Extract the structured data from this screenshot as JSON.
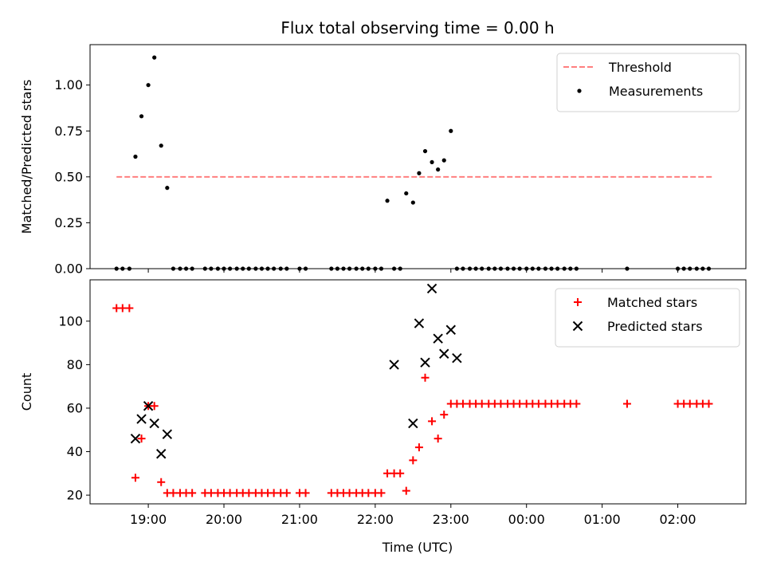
{
  "chart_data": {
    "title": "Flux total observing time = 0.00 h",
    "type": "scatter",
    "xlabel": "Time (UTC)",
    "x_unit": "decimal hours UTC; values over 24 continue past midnight",
    "x_ticks": [
      {
        "value": 19,
        "label": "19:00"
      },
      {
        "value": 20,
        "label": "20:00"
      },
      {
        "value": 21,
        "label": "21:00"
      },
      {
        "value": 22,
        "label": "22:00"
      },
      {
        "value": 23,
        "label": "23:00"
      },
      {
        "value": 24,
        "label": "00:00"
      },
      {
        "value": 25,
        "label": "01:00"
      },
      {
        "value": 26,
        "label": "02:00"
      }
    ],
    "xlim": [
      18.23,
      26.9
    ],
    "panels": [
      {
        "ylabel": "Matched/Predicted stars",
        "ylim": [
          0,
          1.22
        ],
        "y_ticks": [
          {
            "value": 0.0,
            "label": "0.00"
          },
          {
            "value": 0.25,
            "label": "0.25"
          },
          {
            "value": 0.5,
            "label": "0.50"
          },
          {
            "value": 0.75,
            "label": "0.75"
          },
          {
            "value": 1.0,
            "label": "1.00"
          }
        ],
        "legend": {
          "position": "top-right",
          "entries": [
            "Threshold",
            "Measurements"
          ]
        },
        "series": [
          {
            "name": "Threshold",
            "kind": "dashed-line",
            "color": "#ff7f7f",
            "x": [
              18.58,
              26.45
            ],
            "y": [
              0.5,
              0.5
            ]
          },
          {
            "name": "Measurements",
            "kind": "dot",
            "color": "#000000",
            "x": [
              18.58,
              18.66,
              18.75,
              18.83,
              18.91,
              19.0,
              19.08,
              19.17,
              19.25,
              19.33,
              19.42,
              19.5,
              19.58,
              19.75,
              19.83,
              19.92,
              20.0,
              20.08,
              20.17,
              20.25,
              20.33,
              20.42,
              20.5,
              20.58,
              20.66,
              20.75,
              20.83,
              21.0,
              21.08,
              21.42,
              21.5,
              21.58,
              21.66,
              21.75,
              21.83,
              21.91,
              22.0,
              22.08,
              22.16,
              22.25,
              22.33,
              22.41,
              22.5,
              22.58,
              22.66,
              22.75,
              22.83,
              22.91,
              23.0,
              23.08,
              23.16,
              23.25,
              23.33,
              23.41,
              23.5,
              23.58,
              23.66,
              23.75,
              23.83,
              23.91,
              24.0,
              24.08,
              24.16,
              24.25,
              24.33,
              24.41,
              24.5,
              24.58,
              24.66,
              25.33,
              26.0,
              26.08,
              26.16,
              26.25,
              26.33,
              26.41
            ],
            "y": [
              0,
              0,
              0,
              0.61,
              0.83,
              1.0,
              1.15,
              0.67,
              0.44,
              0,
              0,
              0,
              0,
              0,
              0,
              0,
              0,
              0,
              0,
              0,
              0,
              0,
              0,
              0,
              0,
              0,
              0,
              0,
              0,
              0,
              0,
              0,
              0,
              0,
              0,
              0,
              0,
              0,
              0.37,
              0,
              0,
              0.41,
              0.36,
              0.52,
              0.64,
              0.58,
              0.54,
              0.59,
              0.75,
              0,
              0,
              0,
              0,
              0,
              0,
              0,
              0,
              0,
              0,
              0,
              0,
              0,
              0,
              0,
              0,
              0,
              0,
              0,
              0,
              0,
              0,
              0,
              0,
              0,
              0,
              0
            ]
          }
        ]
      },
      {
        "ylabel": "Count",
        "ylim": [
          16,
          119
        ],
        "y_ticks": [
          {
            "value": 20,
            "label": "20"
          },
          {
            "value": 40,
            "label": "40"
          },
          {
            "value": 60,
            "label": "60"
          },
          {
            "value": 80,
            "label": "80"
          },
          {
            "value": 100,
            "label": "100"
          }
        ],
        "legend": {
          "position": "top-right",
          "entries": [
            "Matched stars",
            "Predicted stars"
          ]
        },
        "series": [
          {
            "name": "Matched stars",
            "kind": "plus",
            "color": "#ff0000",
            "x": [
              18.58,
              18.66,
              18.75,
              18.83,
              18.91,
              19.0,
              19.08,
              19.17,
              19.25,
              19.33,
              19.42,
              19.5,
              19.58,
              19.75,
              19.83,
              19.92,
              20.0,
              20.08,
              20.17,
              20.25,
              20.33,
              20.42,
              20.5,
              20.58,
              20.66,
              20.75,
              20.83,
              21.0,
              21.08,
              21.42,
              21.5,
              21.58,
              21.66,
              21.75,
              21.83,
              21.91,
              22.0,
              22.08,
              22.16,
              22.25,
              22.33,
              22.41,
              22.5,
              22.58,
              22.66,
              22.75,
              22.83,
              22.91,
              23.0,
              23.08,
              23.16,
              23.25,
              23.33,
              23.41,
              23.5,
              23.58,
              23.66,
              23.75,
              23.83,
              23.91,
              24.0,
              24.08,
              24.16,
              24.25,
              24.33,
              24.41,
              24.5,
              24.58,
              24.66,
              25.33,
              26.0,
              26.08,
              26.16,
              26.25,
              26.33,
              26.41
            ],
            "y": [
              106,
              106,
              106,
              28,
              46,
              61,
              61,
              26,
              21,
              21,
              21,
              21,
              21,
              21,
              21,
              21,
              21,
              21,
              21,
              21,
              21,
              21,
              21,
              21,
              21,
              21,
              21,
              21,
              21,
              21,
              21,
              21,
              21,
              21,
              21,
              21,
              21,
              21,
              30,
              30,
              30,
              22,
              36,
              42,
              74,
              54,
              46,
              57,
              62,
              62,
              62,
              62,
              62,
              62,
              62,
              62,
              62,
              62,
              62,
              62,
              62,
              62,
              62,
              62,
              62,
              62,
              62,
              62,
              62,
              62,
              62,
              62,
              62,
              62,
              62,
              62
            ]
          },
          {
            "name": "Predicted stars",
            "kind": "x",
            "color": "#000000",
            "x": [
              18.83,
              18.91,
              19.0,
              19.08,
              19.17,
              19.25,
              22.25,
              22.5,
              22.58,
              22.66,
              22.75,
              22.83,
              22.91,
              23.0,
              23.08
            ],
            "y": [
              46,
              55,
              61,
              53,
              39,
              48,
              80,
              53,
              99,
              81,
              115,
              92,
              85,
              96,
              83
            ]
          }
        ]
      }
    ]
  }
}
